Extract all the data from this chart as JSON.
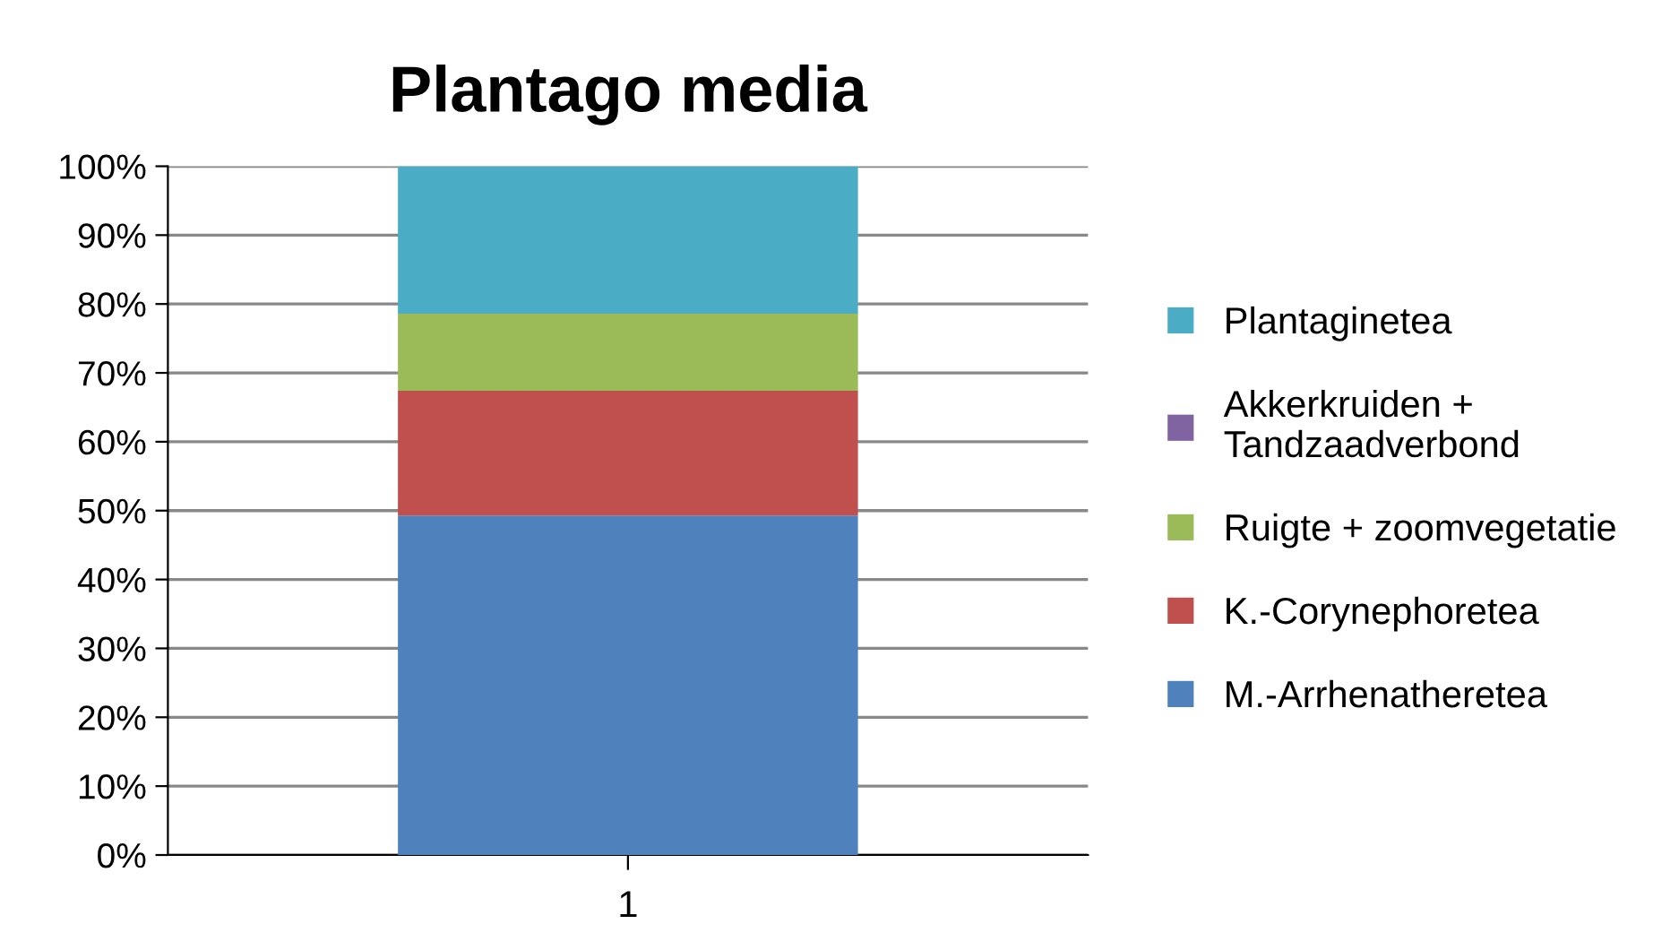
{
  "chart_data": {
    "type": "bar",
    "title": "Plantago media",
    "stacked": true,
    "categories": [
      "1"
    ],
    "series": [
      {
        "name": "M.-Arrhenatheretea",
        "color": "#4f81bd",
        "values": [
          49.3
        ]
      },
      {
        "name": "K.-Corynephoretea",
        "color": "#c0504d",
        "values": [
          18.1
        ]
      },
      {
        "name": "Ruigte + zoomvegetatie",
        "color": "#9bbb59",
        "values": [
          11.2
        ]
      },
      {
        "name": "Akkerkruiden + Tandzaadverbond",
        "color": "#8064a2",
        "values": [
          0
        ]
      },
      {
        "name": "Plantaginetea",
        "color": "#4bacc6",
        "values": [
          21.4
        ]
      }
    ],
    "ylim": [
      0,
      100
    ],
    "yticks": [
      {
        "value": 0,
        "label": "0%"
      },
      {
        "value": 10,
        "label": "10%"
      },
      {
        "value": 20,
        "label": "20%"
      },
      {
        "value": 30,
        "label": "30%"
      },
      {
        "value": 40,
        "label": "40%"
      },
      {
        "value": 50,
        "label": "50%"
      },
      {
        "value": 60,
        "label": "60%"
      },
      {
        "value": 70,
        "label": "70%"
      },
      {
        "value": 80,
        "label": "80%"
      },
      {
        "value": 90,
        "label": "90%"
      },
      {
        "value": 100,
        "label": "100%"
      }
    ],
    "grid": "y",
    "legend": "right"
  }
}
